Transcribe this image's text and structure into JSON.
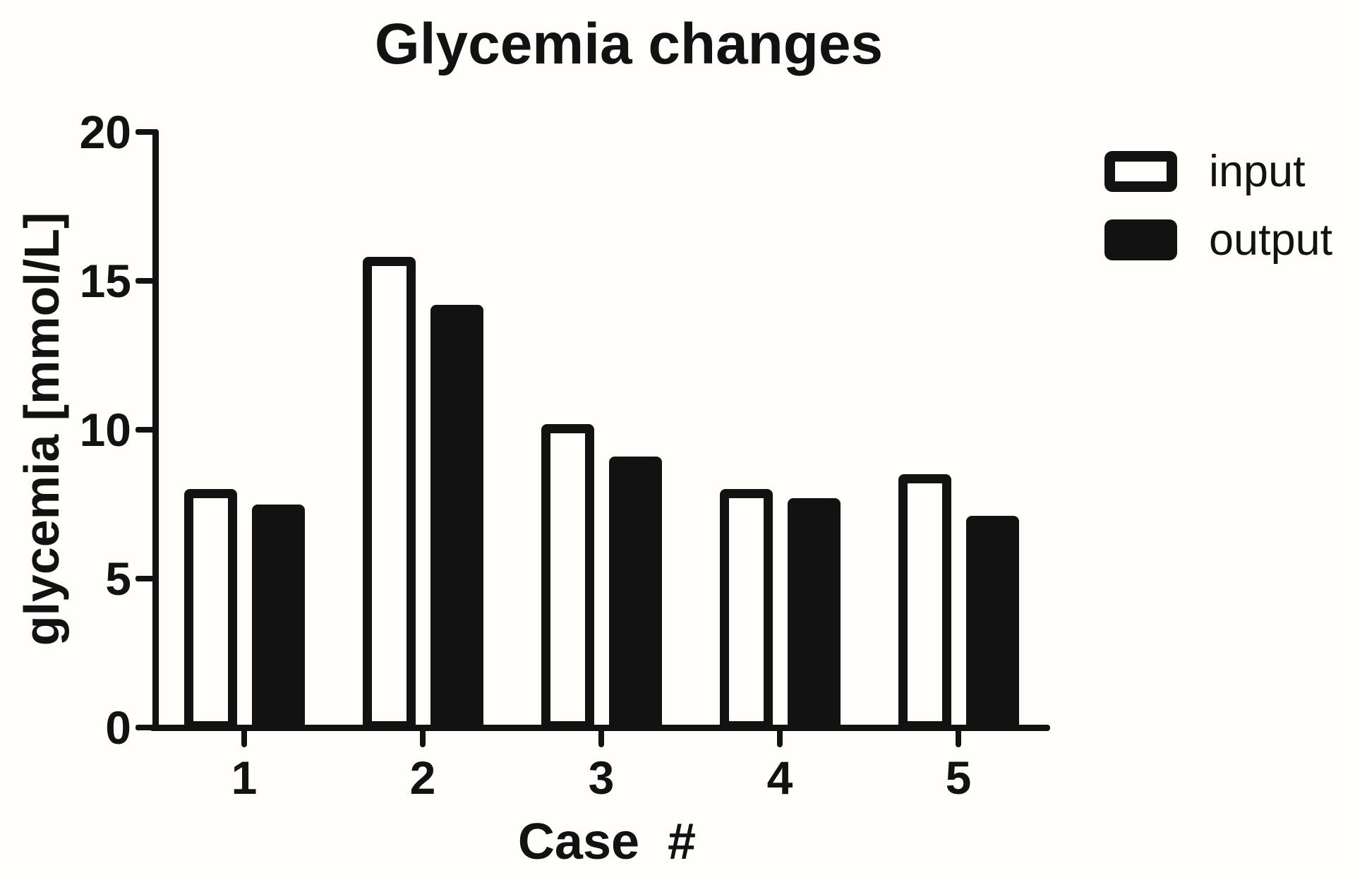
{
  "title": "Glycemia changes",
  "colors": {
    "ink": "#121212",
    "background": "#fffefa",
    "input_bar_fill": "#fffefa",
    "output_bar_fill": "#121212"
  },
  "legend": {
    "items": [
      {
        "label": "input",
        "swatch": "outlined"
      },
      {
        "label": "output",
        "swatch": "filled"
      }
    ]
  },
  "chart_data": {
    "type": "bar",
    "title": "Glycemia changes",
    "xlabel": "Case  #",
    "ylabel": "glycemia [mmol/L]",
    "categories": [
      "1",
      "2",
      "3",
      "4",
      "5"
    ],
    "series": [
      {
        "name": "input",
        "style": "outlined-white",
        "values": [
          8.0,
          15.8,
          10.2,
          8.0,
          8.5
        ]
      },
      {
        "name": "output",
        "style": "filled-black",
        "values": [
          7.5,
          14.2,
          9.1,
          7.7,
          7.1
        ]
      }
    ],
    "ylim": [
      0,
      20
    ],
    "yticks": [
      0,
      5,
      10,
      15,
      20
    ],
    "grid": false,
    "legend_position": "top-right"
  }
}
